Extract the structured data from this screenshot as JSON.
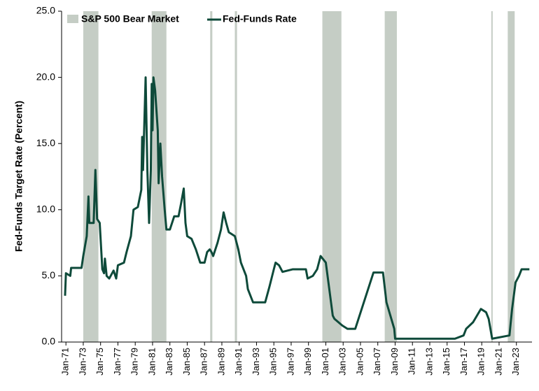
{
  "chart_data": {
    "type": "line",
    "ylabel": "Fed-Funds Target Rate (Percent)",
    "xlim": [
      1970.5,
      2024.8
    ],
    "ylim": [
      0,
      25
    ],
    "yticks": [
      {
        "value": 0,
        "label": "0.0"
      },
      {
        "value": 5,
        "label": "5.0"
      },
      {
        "value": 10,
        "label": "10.0"
      },
      {
        "value": 15,
        "label": "15.0"
      },
      {
        "value": 20,
        "label": "20.0"
      },
      {
        "value": 25,
        "label": "25.0"
      }
    ],
    "xticks": [
      {
        "value": 1971,
        "label": "Jan-71"
      },
      {
        "value": 1973,
        "label": "Jan-73"
      },
      {
        "value": 1975,
        "label": "Jan-75"
      },
      {
        "value": 1977,
        "label": "Jan-77"
      },
      {
        "value": 1979,
        "label": "Jan-79"
      },
      {
        "value": 1981,
        "label": "Jan-81"
      },
      {
        "value": 1983,
        "label": "Jan-83"
      },
      {
        "value": 1985,
        "label": "Jan-85"
      },
      {
        "value": 1987,
        "label": "Jan-87"
      },
      {
        "value": 1989,
        "label": "Jan-89"
      },
      {
        "value": 1991,
        "label": "Jan-91"
      },
      {
        "value": 1993,
        "label": "Jan-93"
      },
      {
        "value": 1995,
        "label": "Jan-95"
      },
      {
        "value": 1997,
        "label": "Jan-97"
      },
      {
        "value": 1999,
        "label": "Jan-99"
      },
      {
        "value": 2001,
        "label": "Jan-01"
      },
      {
        "value": 2003,
        "label": "Jan-03"
      },
      {
        "value": 2005,
        "label": "Jan-05"
      },
      {
        "value": 2007,
        "label": "Jan-07"
      },
      {
        "value": 2009,
        "label": "Jan-09"
      },
      {
        "value": 2011,
        "label": "Jan-11"
      },
      {
        "value": 2013,
        "label": "Jan-13"
      },
      {
        "value": 2015,
        "label": "Jan-15"
      },
      {
        "value": 2017,
        "label": "Jan-17"
      },
      {
        "value": 2019,
        "label": "Jan-19"
      },
      {
        "value": 2021,
        "label": "Jan-21"
      },
      {
        "value": 2023,
        "label": "Jan-23"
      }
    ],
    "shaded_periods": {
      "name": "S&P 500 Bear Market",
      "color": "#c5cdc5",
      "ranges": [
        [
          1973.0,
          1974.75
        ],
        [
          1980.9,
          1982.6
        ],
        [
          1987.65,
          1987.9
        ],
        [
          1990.5,
          1990.75
        ],
        [
          2000.6,
          2002.8
        ],
        [
          2007.8,
          2009.2
        ],
        [
          2020.1,
          2020.25
        ],
        [
          2022.0,
          2022.8
        ]
      ]
    },
    "series": [
      {
        "name": "Fed-Funds Rate",
        "color": "#0e4a3a",
        "x": [
          1970.9,
          1971.0,
          1971.5,
          1971.6,
          1972.0,
          1972.8,
          1973.0,
          1973.4,
          1973.6,
          1973.7,
          1974.2,
          1974.4,
          1974.6,
          1974.9,
          1975.2,
          1975.4,
          1975.5,
          1975.7,
          1976.0,
          1976.5,
          1976.8,
          1977.0,
          1977.7,
          1978.0,
          1978.5,
          1978.8,
          1979.3,
          1979.7,
          1979.8,
          1979.9,
          1980.2,
          1980.4,
          1980.6,
          1980.8,
          1980.9,
          1981.0,
          1981.1,
          1981.3,
          1981.6,
          1981.7,
          1981.9,
          1982.1,
          1982.4,
          1982.6,
          1983.0,
          1983.5,
          1984.0,
          1984.3,
          1984.6,
          1984.8,
          1985.0,
          1985.5,
          1986.0,
          1986.5,
          1987.0,
          1987.3,
          1987.6,
          1987.8,
          1988.0,
          1988.5,
          1988.9,
          1989.2,
          1989.5,
          1989.8,
          1990.5,
          1990.9,
          1991.2,
          1991.8,
          1992.0,
          1992.6,
          1993.5,
          1994.0,
          1994.5,
          1995.0,
          1995.2,
          1995.6,
          1996.0,
          1997.2,
          1998.7,
          1998.9,
          1999.5,
          2000.0,
          2000.4,
          2001.0,
          2001.3,
          2001.8,
          2002.0,
          2002.9,
          2003.5,
          2004.4,
          2006.5,
          2007.6,
          2008.0,
          2008.9,
          2009.0,
          2015.9,
          2016.9,
          2017.2,
          2018.0,
          2018.9,
          2019.5,
          2019.8,
          2020.2,
          2022.2,
          2022.5,
          2022.9,
          2023.3,
          2023.6,
          2024.5
        ],
        "values": [
          3.5,
          5.2,
          5.0,
          5.6,
          5.6,
          5.6,
          6.5,
          8.0,
          11.0,
          9.0,
          9.0,
          13.0,
          9.3,
          9.0,
          5.5,
          5.2,
          6.3,
          5.0,
          4.8,
          5.4,
          4.8,
          5.8,
          6.0,
          6.8,
          8.0,
          10.0,
          10.2,
          11.5,
          15.5,
          13.0,
          20.0,
          13.0,
          9.0,
          13.0,
          19.5,
          16.0,
          20.0,
          19.0,
          16.0,
          12.0,
          15.0,
          12.5,
          10.0,
          8.5,
          8.5,
          9.5,
          9.5,
          10.5,
          11.6,
          9.0,
          8.0,
          7.8,
          7.0,
          6.0,
          6.0,
          6.8,
          7.0,
          6.8,
          6.5,
          7.5,
          8.5,
          9.8,
          9.0,
          8.3,
          8.0,
          7.0,
          6.0,
          5.0,
          4.0,
          3.0,
          3.0,
          3.0,
          4.2,
          5.5,
          6.0,
          5.8,
          5.3,
          5.5,
          5.5,
          4.8,
          5.0,
          5.5,
          6.5,
          6.0,
          4.5,
          2.0,
          1.75,
          1.25,
          1.0,
          1.0,
          5.25,
          5.25,
          3.0,
          1.0,
          0.25,
          0.25,
          0.5,
          1.0,
          1.5,
          2.5,
          2.25,
          1.75,
          0.25,
          0.5,
          2.5,
          4.5,
          5.0,
          5.5,
          5.5
        ]
      }
    ]
  }
}
